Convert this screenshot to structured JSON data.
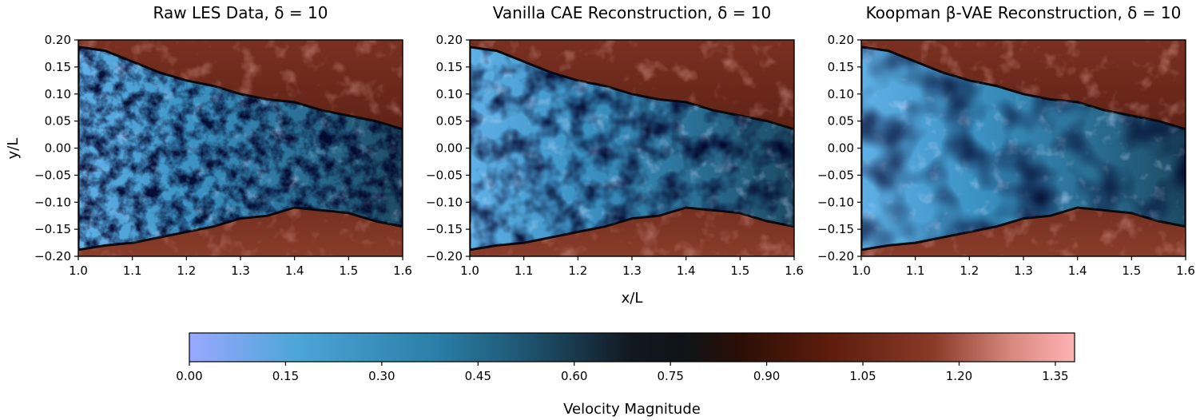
{
  "chart_data": [
    {
      "type": "heatmap",
      "title": "Raw LES Data, δ = 10",
      "x_ticks": [
        "1.0",
        "1.1",
        "1.2",
        "1.3",
        "1.4",
        "1.5",
        "1.6"
      ],
      "y_ticks": [
        "0.20",
        "0.15",
        "0.10",
        "0.05",
        "0.00",
        "−0.05",
        "−0.10",
        "−0.15",
        "−0.20"
      ],
      "xlim": [
        1.0,
        1.6
      ],
      "ylim": [
        -0.2,
        0.2
      ],
      "texture": "fine"
    },
    {
      "type": "heatmap",
      "title": "Vanilla CAE Reconstruction, δ = 10",
      "x_ticks": [
        "1.0",
        "1.1",
        "1.2",
        "1.3",
        "1.4",
        "1.5",
        "1.6"
      ],
      "y_ticks": [
        "0.20",
        "0.15",
        "0.10",
        "0.05",
        "0.00",
        "−0.05",
        "−0.10",
        "−0.15",
        "−0.20"
      ],
      "xlim": [
        1.0,
        1.6
      ],
      "ylim": [
        -0.2,
        0.2
      ],
      "texture": "medium"
    },
    {
      "type": "heatmap",
      "title": "Koopman β-VAE Reconstruction, δ = 10",
      "x_ticks": [
        "1.0",
        "1.1",
        "1.2",
        "1.3",
        "1.4",
        "1.5",
        "1.6"
      ],
      "y_ticks": [
        "0.20",
        "0.15",
        "0.10",
        "0.05",
        "0.00",
        "−0.05",
        "−0.10",
        "−0.15",
        "−0.20"
      ],
      "xlim": [
        1.0,
        1.6
      ],
      "ylim": [
        -0.2,
        0.2
      ],
      "texture": "coarse"
    }
  ],
  "shared_labels": {
    "ylabel": "y/L",
    "xlabel": "x/L"
  },
  "colorbar": {
    "label": "Velocity Magnitude",
    "ticks": [
      "0.00",
      "0.15",
      "0.30",
      "0.45",
      "0.60",
      "0.75",
      "0.90",
      "1.05",
      "1.20",
      "1.35"
    ],
    "range": [
      0,
      1.38
    ],
    "colors": {
      "low": "#9aa8ff",
      "low_mid": "#4da6d8",
      "mid_low": "#1e5570",
      "mid": "#101418",
      "mid_high": "#3a1408",
      "high_mid": "#8a3a28",
      "high": "#ffb3b3"
    }
  }
}
